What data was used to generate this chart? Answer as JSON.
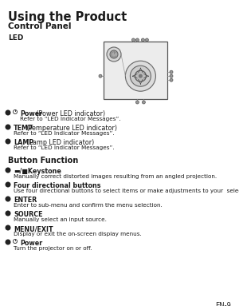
{
  "title": "Using the Product",
  "subtitle": "Control Panel",
  "led_label": "LED",
  "page_number": "EN-9",
  "background_color": "#ffffff",
  "text_color": "#1a1a1a",
  "led_items": [
    {
      "has_power_icon": true,
      "bold": "Power",
      "normal": " (Power LED indicator)",
      "sub": "Refer to “LED Indicator Messages”."
    },
    {
      "has_power_icon": false,
      "bold": "TEMP",
      "normal": " (Temperature LED indicator)",
      "sub": "Refer to “LED Indicator Messages”."
    },
    {
      "has_power_icon": false,
      "bold": "LAMP",
      "normal": " (Lamp LED indicator)",
      "sub": "Refer to “LED Indicator Messages”."
    }
  ],
  "button_section": "Button Function",
  "button_items": [
    {
      "has_power_icon": false,
      "bold": "▬/■Keystone",
      "sub": "Manually correct distorted images resulting from an angled projection."
    },
    {
      "has_power_icon": false,
      "bold": "Four directional buttons",
      "sub": "Use four directional buttons to select items or make adjustments to your  selection."
    },
    {
      "has_power_icon": false,
      "bold": "ENTER",
      "sub": "Enter to sub-menu and confirm the menu selection."
    },
    {
      "has_power_icon": false,
      "bold": "SOURCE",
      "sub": "Manually select an input source."
    },
    {
      "has_power_icon": false,
      "bold": "MENU/EXIT",
      "sub": "Display or exit the on-screen display menus."
    },
    {
      "has_power_icon": true,
      "bold": "Power",
      "sub": "Turn the projector on or off."
    }
  ]
}
